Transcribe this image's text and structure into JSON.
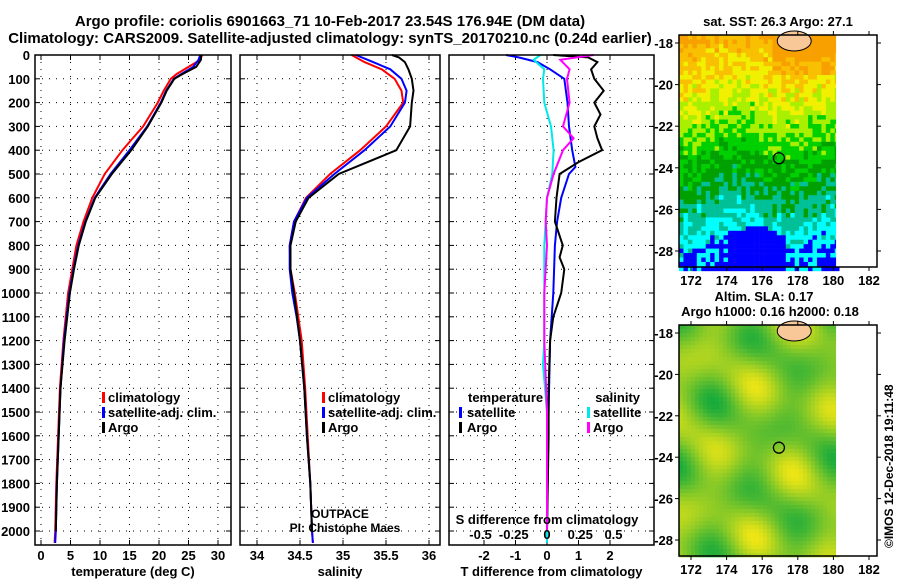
{
  "title": {
    "line1": "Argo profile: coriolis 6901663_71 10-Feb-2017 23.54S 176.94E (DM data)",
    "line2": "Climatology: CARS2009. Satellite-adjusted climatology: synTS_20170210.nc (0.24d earlier)"
  },
  "depth_ticks": [
    "0",
    "100",
    "200",
    "300",
    "400",
    "500",
    "600",
    "700",
    "800",
    "900",
    "1000",
    "1100",
    "1200",
    "1300",
    "1400",
    "1500",
    "1600",
    "1700",
    "1800",
    "1900",
    "2000"
  ],
  "colors": {
    "climatology": "#ff0000",
    "satellite": "#0000ff",
    "argo": "#000000",
    "sal_satellite": "#00e8e8",
    "sal_argo": "#ff00ff"
  },
  "legend": {
    "climatology": "climatology",
    "satellite_adj": "satellite-adj. clim.",
    "argo": "Argo"
  },
  "diff_legend": {
    "temperature": "temperature",
    "salinity": "salinity",
    "satellite": "satellite",
    "argo": "Argo"
  },
  "annotation": {
    "project": "OUTPACE",
    "pi": "PI: Chistophe Maes"
  },
  "copyright": "©IMOS 12-Dec-2018 19:11:48",
  "chart_data": [
    {
      "type": "line",
      "id": "temperature",
      "xlabel": "temperature (deg C)",
      "ylabel": "depth",
      "xticks": [
        "0",
        "5",
        "10",
        "15",
        "20",
        "25",
        "30"
      ],
      "xtick_values": [
        0,
        5,
        10,
        15,
        20,
        25,
        30
      ],
      "xlim": [
        -1,
        32.2
      ],
      "ylim": [
        2060,
        0
      ],
      "grid": true,
      "legend_position": "lower-middle",
      "series": [
        {
          "name": "climatology",
          "color": "#ff0000",
          "depth": [
            0,
            20,
            50,
            80,
            100,
            150,
            200,
            300,
            400,
            500,
            600,
            700,
            800,
            900,
            1000,
            1200,
            1400,
            1600,
            1800,
            2000,
            2050
          ],
          "values": [
            27.3,
            27.0,
            25.0,
            23.0,
            22.0,
            20.8,
            19.8,
            17.3,
            13.8,
            10.8,
            8.7,
            7.2,
            6.0,
            5.3,
            4.6,
            3.8,
            3.2,
            2.9,
            2.6,
            2.4,
            2.3
          ]
        },
        {
          "name": "satellite-adj. clim.",
          "color": "#0000ff",
          "depth": [
            0,
            20,
            50,
            80,
            100,
            150,
            200,
            300,
            400,
            500,
            600,
            700,
            800,
            900,
            1000,
            1200,
            1400,
            1600,
            1800,
            2000,
            2050
          ],
          "values": [
            27.0,
            26.7,
            25.8,
            23.8,
            22.5,
            21.2,
            20.3,
            18.0,
            15.0,
            11.8,
            9.1,
            7.5,
            6.3,
            5.5,
            4.8,
            3.9,
            3.3,
            3.0,
            2.7,
            2.5,
            2.4
          ]
        },
        {
          "name": "Argo",
          "color": "#000000",
          "depth": [
            0,
            20,
            50,
            80,
            100,
            150,
            200,
            300,
            400,
            500,
            600,
            700,
            800,
            900,
            1000,
            1200,
            1400,
            1600,
            1800,
            2000
          ],
          "values": [
            27.1,
            27.1,
            26.3,
            24.0,
            22.6,
            21.3,
            20.4,
            18.1,
            15.3,
            12.0,
            9.2,
            7.6,
            6.4,
            5.6,
            4.9,
            4.0,
            3.3,
            3.0,
            2.7,
            2.5
          ]
        }
      ]
    },
    {
      "type": "line",
      "id": "salinity",
      "xlabel": "salinity",
      "xticks": [
        "34",
        "34.5",
        "35",
        "35.5",
        "36"
      ],
      "xtick_values": [
        34,
        34.5,
        35,
        35.5,
        36
      ],
      "xlim": [
        33.8,
        36.13
      ],
      "ylim": [
        2060,
        0
      ],
      "grid": true,
      "series": [
        {
          "name": "climatology",
          "color": "#ff0000",
          "depth": [
            0,
            30,
            60,
            100,
            150,
            200,
            300,
            400,
            500,
            600,
            700,
            800,
            900,
            1000,
            1100,
            1200,
            1400,
            1600,
            1800,
            2000,
            2050
          ],
          "values": [
            35.1,
            35.25,
            35.45,
            35.6,
            35.68,
            35.7,
            35.5,
            35.2,
            34.85,
            34.57,
            34.43,
            34.38,
            34.39,
            34.44,
            34.48,
            34.52,
            34.56,
            34.59,
            34.62,
            34.64,
            34.65
          ]
        },
        {
          "name": "satellite-adj. clim.",
          "color": "#0000ff",
          "depth": [
            0,
            30,
            60,
            100,
            150,
            200,
            300,
            400,
            500,
            600,
            700,
            800,
            900,
            1000,
            1100,
            1200,
            1400,
            1600,
            1800,
            2000,
            2050
          ],
          "values": [
            35.15,
            35.35,
            35.55,
            35.68,
            35.74,
            35.72,
            35.55,
            35.25,
            34.9,
            34.58,
            34.43,
            34.38,
            34.38,
            34.41,
            34.46,
            34.5,
            34.55,
            34.58,
            34.62,
            34.64,
            34.65
          ]
        },
        {
          "name": "Argo",
          "color": "#000000",
          "depth": [
            0,
            10,
            30,
            60,
            100,
            150,
            200,
            300,
            400,
            500,
            600,
            700,
            800,
            900,
            1000,
            1200,
            1400,
            1600,
            1800,
            2000
          ],
          "values": [
            35.57,
            35.65,
            35.72,
            35.76,
            35.8,
            35.82,
            35.8,
            35.78,
            35.62,
            34.95,
            34.6,
            34.45,
            34.39,
            34.39,
            34.43,
            34.5,
            34.55,
            34.58,
            34.62,
            34.64
          ]
        }
      ]
    },
    {
      "type": "line",
      "id": "differences",
      "xlabel": "T difference from climatology",
      "xlabel2": "S difference from climatology",
      "xticks": [
        "-2",
        "-1",
        "0",
        "1",
        "2"
      ],
      "xtick_values": [
        -2,
        -1,
        0,
        1,
        2
      ],
      "xticks_s": [
        "-0.5",
        "-0.25",
        "0",
        "0.25",
        "0.5"
      ],
      "xtick_values_s": [
        -0.5,
        -0.25,
        0,
        0.25,
        0.5
      ],
      "xlim": [
        -2.9,
        3.4
      ],
      "ylim": [
        2060,
        0
      ],
      "grid": true,
      "series": [
        {
          "name": "temperature satellite",
          "axis": "T",
          "color": "#0000ff",
          "depth": [
            0,
            10,
            30,
            60,
            100,
            200,
            300,
            400,
            470,
            500,
            600,
            700,
            800,
            1000,
            1200,
            1500,
            1800,
            2000,
            2050
          ],
          "values": [
            -1.3,
            -0.9,
            -0.3,
            0.1,
            0.55,
            0.65,
            0.7,
            0.8,
            0.9,
            0.7,
            0.45,
            0.32,
            0.25,
            0.2,
            0.1,
            0.05,
            0.02,
            0,
            0
          ]
        },
        {
          "name": "temperature Argo",
          "axis": "T",
          "color": "#000000",
          "depth": [
            0,
            10,
            30,
            60,
            100,
            150,
            200,
            250,
            300,
            350,
            400,
            450,
            500,
            600,
            700,
            800,
            850,
            900,
            1000,
            1100,
            1200,
            1400,
            1600,
            2000
          ],
          "values": [
            0.2,
            1.3,
            1.6,
            1.4,
            1.5,
            1.8,
            1.5,
            1.7,
            1.5,
            1.6,
            1.75,
            1.0,
            0.4,
            0.3,
            0.25,
            0.5,
            0.4,
            0.55,
            0.45,
            0.2,
            0.1,
            0.05,
            0.05,
            0
          ]
        },
        {
          "name": "salinity satellite",
          "axis": "S",
          "color": "#00e8e8",
          "depth": [
            0,
            20,
            60,
            100,
            200,
            300,
            400,
            500,
            600,
            800,
            1000,
            1200,
            1300,
            1500,
            1800,
            2000,
            2050
          ],
          "values": [
            -0.05,
            -0.1,
            -0.02,
            -0.03,
            -0.02,
            0.03,
            0.05,
            0.04,
            0.0,
            -0.02,
            -0.02,
            -0.02,
            -0.03,
            0.0,
            0.0,
            0.0,
            0.0
          ]
        },
        {
          "name": "salinity Argo",
          "axis": "S",
          "color": "#ff00ff",
          "depth": [
            0,
            20,
            60,
            100,
            200,
            300,
            350,
            400,
            500,
            600,
            700,
            800,
            1000,
            1200,
            1500,
            1800,
            2000
          ],
          "values": [
            0.35,
            0.1,
            0.17,
            0.15,
            0.17,
            0.12,
            0.2,
            0.12,
            0.05,
            0.0,
            -0.01,
            0.0,
            -0.02,
            -0.02,
            0.0,
            0.0,
            0.0
          ]
        }
      ]
    },
    {
      "type": "heatmap",
      "id": "sst_map",
      "title": "sat. SST: 26.3 Argo: 27.1",
      "xticks": [
        "172",
        "174",
        "176",
        "178",
        "180",
        "182"
      ],
      "xtick_values": [
        172,
        174,
        176,
        178,
        180,
        182
      ],
      "yticks": [
        "-18",
        "-20",
        "-22",
        "-24",
        "-26",
        "-28"
      ],
      "ytick_values": [
        -18,
        -20,
        -22,
        -24,
        -26,
        -28
      ],
      "xlim": [
        171.4,
        182.6
      ],
      "ylim": [
        -29.6,
        -17.6
      ],
      "float_position": {
        "lon": 176.94,
        "lat": -23.54
      }
    },
    {
      "type": "heatmap",
      "id": "sla_map",
      "title": "Altim. SLA: 0.17",
      "subtitle": "Argo h1000: 0.16 h2000: 0.18",
      "xticks": [
        "172",
        "174",
        "176",
        "178",
        "180",
        "182"
      ],
      "xtick_values": [
        172,
        174,
        176,
        178,
        180,
        182
      ],
      "yticks": [
        "-18",
        "-20",
        "-22",
        "-24",
        "-26",
        "-28"
      ],
      "ytick_values": [
        -18,
        -20,
        -22,
        -24,
        -26,
        -28
      ],
      "xlim": [
        171.4,
        182.6
      ],
      "ylim": [
        -29.6,
        -17.6
      ],
      "float_position": {
        "lon": 176.94,
        "lat": -23.54
      }
    }
  ]
}
